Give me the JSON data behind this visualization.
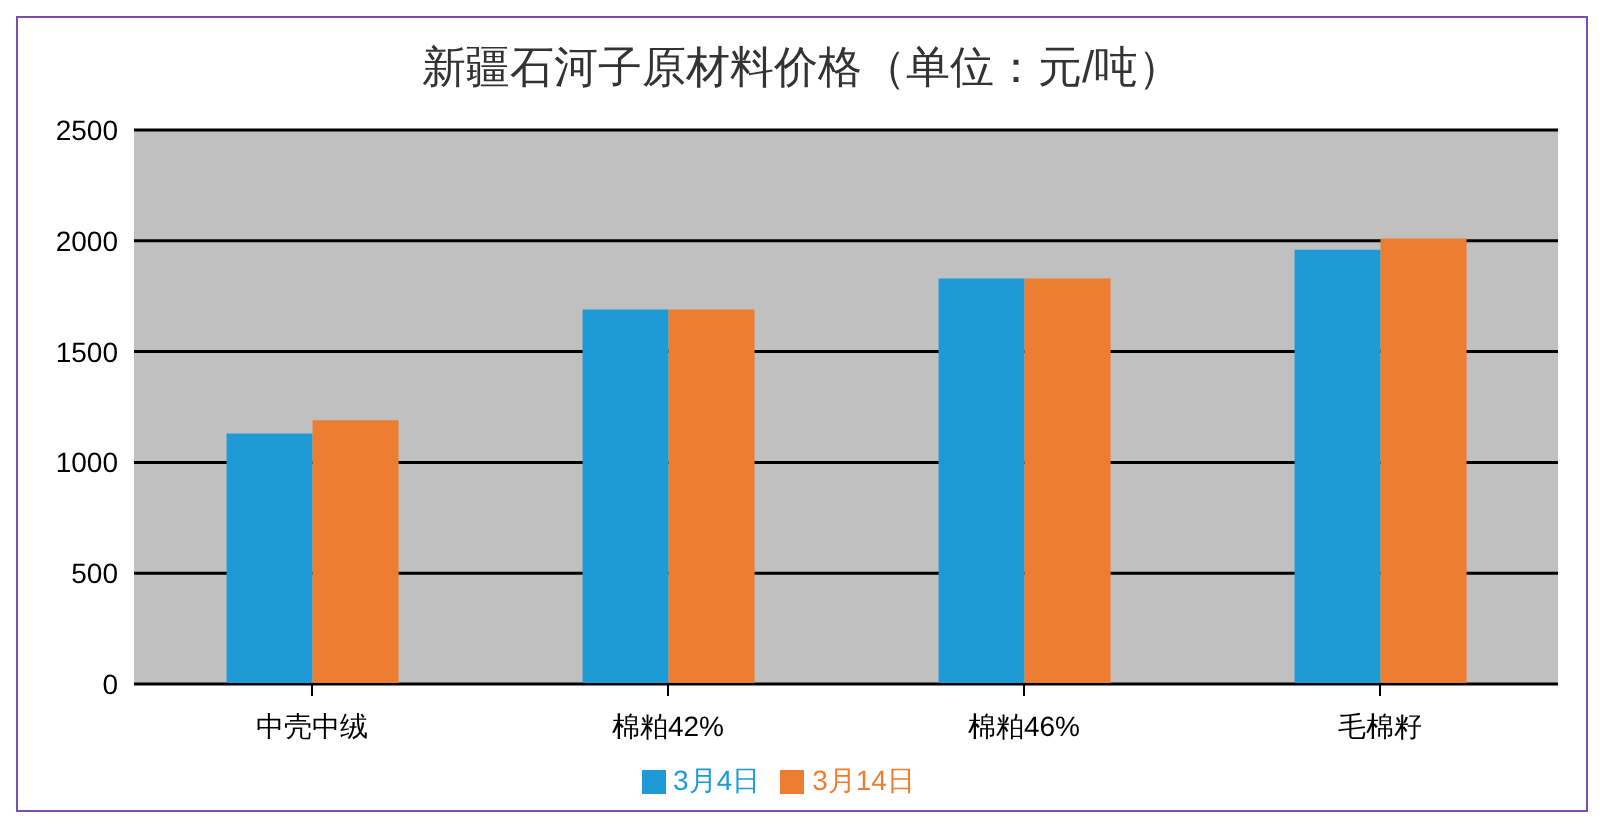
{
  "chart_data": {
    "type": "bar",
    "title": "新疆石河子原材料价格（单位：元/吨）",
    "categories": [
      "中壳中绒",
      "棉粕42%",
      "棉粕46%",
      "毛棉籽"
    ],
    "series": [
      {
        "name": "3月4日",
        "color": "#1e9ad6",
        "values": [
          1130,
          1690,
          1830,
          1960
        ]
      },
      {
        "name": "3月14日",
        "color": "#ed7d31",
        "values": [
          1190,
          1690,
          1830,
          2010
        ]
      }
    ],
    "ylim": [
      0,
      2500
    ],
    "yticks": [
      0,
      500,
      1000,
      1500,
      2000,
      2500
    ],
    "grid": "y",
    "legend": "bottom"
  }
}
